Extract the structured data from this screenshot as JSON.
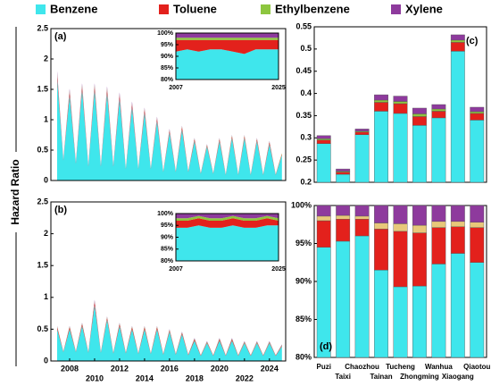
{
  "legend": [
    "Benzene",
    "Toluene",
    "Ethylbenzene",
    "Xylene"
  ],
  "ylabel": "Hazard Ratio",
  "chart_data": [
    {
      "type": "area",
      "label": "(a)",
      "x": [
        2007,
        2007.5,
        2008,
        2008.5,
        2009,
        2009.5,
        2010,
        2010.5,
        2011,
        2011.5,
        2012,
        2012.5,
        2013,
        2013.5,
        2014,
        2014.5,
        2015,
        2015.5,
        2016,
        2016.5,
        2017,
        2017.5,
        2018,
        2018.5,
        2019,
        2019.5,
        2020,
        2020.5,
        2021,
        2021.5,
        2022,
        2022.5,
        2023,
        2023.5,
        2024,
        2024.5,
        2025
      ],
      "xlim": [
        2006.5,
        2025.3
      ],
      "ylim": [
        0,
        2.5
      ],
      "yticks": [
        0,
        0.5,
        1,
        1.5,
        2,
        2.5
      ],
      "series": [
        {
          "name": "Benzene",
          "color": "#3fe6ec",
          "values": [
            1.67,
            0.33,
            1.4,
            0.28,
            1.49,
            0.23,
            1.49,
            0.23,
            1.44,
            0.23,
            1.35,
            0.19,
            1.21,
            0.19,
            1.12,
            0.19,
            0.98,
            0.14,
            0.79,
            0.14,
            0.84,
            0.14,
            0.65,
            0.11,
            0.56,
            0.11,
            0.65,
            0.09,
            0.7,
            0.09,
            0.7,
            0.09,
            0.65,
            0.09,
            0.6,
            0.09,
            0.42
          ]
        },
        {
          "name": "Toluene",
          "color": "#e3211c",
          "values": [
            0.07,
            0.01,
            0.06,
            0.01,
            0.06,
            0.01,
            0.06,
            0.01,
            0.06,
            0.01,
            0.06,
            0.01,
            0.05,
            0.01,
            0.05,
            0.01,
            0.04,
            0.01,
            0.03,
            0.01,
            0.04,
            0.01,
            0.03,
            0.01,
            0.02,
            0.01,
            0.03,
            0.01,
            0.03,
            0.01,
            0.03,
            0.01,
            0.03,
            0.01,
            0.03,
            0.01,
            0.02
          ]
        },
        {
          "name": "Ethylbenzene",
          "color": "#8dc63f",
          "values": [
            0.02,
            0,
            0.02,
            0,
            0.02,
            0,
            0.02,
            0,
            0.02,
            0,
            0.01,
            0,
            0.01,
            0,
            0.01,
            0,
            0.01,
            0,
            0.01,
            0,
            0.01,
            0,
            0.01,
            0,
            0.01,
            0,
            0.01,
            0,
            0.01,
            0,
            0.01,
            0,
            0.01,
            0,
            0.01,
            0,
            0.01
          ]
        },
        {
          "name": "Xylene",
          "color": "#8e3a9d",
          "values": [
            0.04,
            0.01,
            0.03,
            0.01,
            0.03,
            0.01,
            0.03,
            0.01,
            0.03,
            0.01,
            0.03,
            0,
            0.03,
            0,
            0.02,
            0,
            0.02,
            0,
            0.02,
            0,
            0.01,
            0,
            0.01,
            0,
            0.01,
            0,
            0.01,
            0,
            0.01,
            0,
            0.01,
            0,
            0.01,
            0,
            0.01,
            0,
            0
          ]
        }
      ],
      "inset": {
        "x": [
          2007,
          2009,
          2011,
          2013,
          2015,
          2017,
          2019,
          2021,
          2023,
          2025
        ],
        "xlim": [
          2007,
          2025
        ],
        "xticks": [
          2007,
          2025
        ],
        "ylim": [
          80,
          100
        ],
        "yticks": [
          {
            "value": 80,
            "label": "80%"
          },
          {
            "value": 85,
            "label": "85%"
          },
          {
            "value": 90,
            "label": "90%"
          },
          {
            "value": 95,
            "label": "95%"
          },
          {
            "value": 100,
            "label": "100%"
          }
        ],
        "series": [
          {
            "name": "Benzene",
            "color": "#3fe6ec",
            "values": [
              92,
              93,
              92,
              93,
              93,
              92,
              91,
              93,
              93,
              93
            ]
          },
          {
            "name": "Toluene",
            "color": "#e3211c",
            "values": [
              5,
              4,
              5,
              4,
              4,
              5,
              6,
              4,
              4,
              4
            ]
          },
          {
            "name": "Ethylbenzene",
            "color": "#8dc63f",
            "values": [
              1,
              1,
              1,
              1,
              1,
              1,
              1,
              1,
              1,
              1
            ]
          },
          {
            "name": "Xylene",
            "color": "#8e3a9d",
            "values": [
              2,
              2,
              2,
              2,
              2,
              2,
              2,
              2,
              2,
              2
            ]
          }
        ]
      }
    },
    {
      "type": "area",
      "label": "(b)",
      "x": [
        2007,
        2007.5,
        2008,
        2008.5,
        2009,
        2009.5,
        2010,
        2010.5,
        2011,
        2011.5,
        2012,
        2012.5,
        2013,
        2013.5,
        2014,
        2014.5,
        2015,
        2015.5,
        2016,
        2016.5,
        2017,
        2017.5,
        2018,
        2018.5,
        2019,
        2019.5,
        2020,
        2020.5,
        2021,
        2021.5,
        2022,
        2022.5,
        2023,
        2023.5,
        2024,
        2024.5,
        2025
      ],
      "xlim": [
        2006.5,
        2025.3
      ],
      "xticks": [
        2008,
        2010,
        2012,
        2014,
        2016,
        2018,
        2020,
        2022,
        2024
      ],
      "ylim": [
        0,
        2.5
      ],
      "yticks": [
        0,
        0.5,
        1,
        1.5,
        2,
        2.5
      ],
      "series": [
        {
          "name": "Benzene",
          "color": "#3fe6ec",
          "values": [
            0.5,
            0.14,
            0.5,
            0.14,
            0.55,
            0.13,
            0.88,
            0.13,
            0.65,
            0.12,
            0.55,
            0.12,
            0.5,
            0.11,
            0.5,
            0.11,
            0.5,
            0.1,
            0.46,
            0.1,
            0.42,
            0.09,
            0.32,
            0.08,
            0.28,
            0.08,
            0.32,
            0.08,
            0.32,
            0.08,
            0.28,
            0.08,
            0.28,
            0.08,
            0.28,
            0.08,
            0.23
          ]
        },
        {
          "name": "Toluene",
          "color": "#e3211c",
          "values": [
            0.03,
            0.01,
            0.03,
            0.01,
            0.03,
            0.01,
            0.05,
            0.01,
            0.03,
            0.01,
            0.03,
            0.01,
            0.03,
            0.01,
            0.03,
            0.01,
            0.03,
            0.01,
            0.02,
            0.01,
            0.02,
            0.01,
            0.02,
            0.01,
            0.01,
            0.01,
            0.02,
            0.01,
            0.02,
            0.01,
            0.01,
            0.01,
            0.01,
            0.01,
            0.01,
            0.01,
            0.01
          ]
        },
        {
          "name": "Ethylbenzene",
          "color": "#8dc63f",
          "values": [
            0.01,
            0,
            0.01,
            0,
            0.01,
            0,
            0.01,
            0,
            0.01,
            0,
            0.01,
            0,
            0.01,
            0,
            0.01,
            0,
            0.01,
            0,
            0.01,
            0,
            0.01,
            0,
            0.01,
            0,
            0.01,
            0,
            0.01,
            0,
            0.01,
            0,
            0.01,
            0,
            0.01,
            0,
            0.01,
            0,
            0.01
          ]
        },
        {
          "name": "Xylene",
          "color": "#8e3a9d",
          "values": [
            0.01,
            0,
            0.01,
            0,
            0.01,
            0,
            0.02,
            0,
            0.01,
            0,
            0.01,
            0,
            0.01,
            0,
            0.01,
            0,
            0.01,
            0,
            0.01,
            0,
            0.01,
            0,
            0.01,
            0,
            0.01,
            0,
            0.01,
            0,
            0.01,
            0,
            0.01,
            0,
            0.01,
            0,
            0.01,
            0,
            0.01
          ]
        }
      ],
      "inset": {
        "x": [
          2007,
          2009,
          2011,
          2013,
          2015,
          2017,
          2019,
          2021,
          2023,
          2025
        ],
        "xlim": [
          2007,
          2025
        ],
        "xticks": [
          2007,
          2025
        ],
        "ylim": [
          80,
          100
        ],
        "yticks": [
          {
            "value": 80,
            "label": "80%"
          },
          {
            "value": 85,
            "label": "85%"
          },
          {
            "value": 90,
            "label": "90%"
          },
          {
            "value": 95,
            "label": "95%"
          },
          {
            "value": 100,
            "label": "100%"
          }
        ],
        "series": [
          {
            "name": "Benzene",
            "color": "#3fe6ec",
            "values": [
              94,
              94,
              95,
              94,
              94,
              95,
              94,
              94,
              95,
              95
            ]
          },
          {
            "name": "Toluene",
            "color": "#e3211c",
            "values": [
              3,
              3,
              3,
              3,
              3,
              3,
              3,
              3,
              3,
              2
            ]
          },
          {
            "name": "Ethylbenzene",
            "color": "#8dc63f",
            "values": [
              1,
              1,
              1,
              1,
              1,
              1,
              1,
              1,
              1,
              1
            ]
          },
          {
            "name": "Xylene",
            "color": "#8e3a9d",
            "values": [
              2,
              2,
              1,
              2,
              2,
              1,
              2,
              2,
              1,
              2
            ]
          }
        ]
      }
    },
    {
      "type": "bar",
      "label": "(c)",
      "categories": [
        "Puzi",
        "Taixi",
        "Chaozhou",
        "Tainan",
        "Tucheng",
        "Zhongming",
        "Wanhua",
        "Xiaogang",
        "Qiaotou"
      ],
      "ylim": [
        0.2,
        0.55
      ],
      "yticks": [
        0.2,
        0.25,
        0.3,
        0.35,
        0.4,
        0.45,
        0.5,
        0.55
      ],
      "series": [
        {
          "name": "Benzene",
          "color": "#3fe6ec",
          "values": [
            0.287,
            0.218,
            0.307,
            0.36,
            0.355,
            0.328,
            0.345,
            0.495,
            0.34
          ]
        },
        {
          "name": "Toluene",
          "color": "#e3211c",
          "values": [
            0.008,
            0.005,
            0.006,
            0.02,
            0.022,
            0.02,
            0.015,
            0.02,
            0.015
          ]
        },
        {
          "name": "Ethylbenzene",
          "color": "#8dc63f",
          "values": [
            0.003,
            0.002,
            0.002,
            0.005,
            0.005,
            0.006,
            0.005,
            0.005,
            0.004
          ]
        },
        {
          "name": "Xylene",
          "color": "#8e3a9d",
          "values": [
            0.007,
            0.005,
            0.005,
            0.012,
            0.012,
            0.013,
            0.01,
            0.012,
            0.01
          ]
        }
      ]
    },
    {
      "type": "bar",
      "label": "(d)",
      "categories": [
        "Puzi",
        "Taixi",
        "Chaozhou",
        "Tainan",
        "Tucheng",
        "Zhongming",
        "Wanhua",
        "Xiaogang",
        "Qiaotou"
      ],
      "ylim": [
        80,
        100
      ],
      "yticks": [
        {
          "value": 80,
          "label": "80%"
        },
        {
          "value": 85,
          "label": "85%"
        },
        {
          "value": 90,
          "label": "90%"
        },
        {
          "value": 95,
          "label": "95%"
        },
        {
          "value": 100,
          "label": "100%"
        }
      ],
      "series": [
        {
          "name": "Benzene",
          "color": "#3fe6ec",
          "values": [
            94.5,
            95.3,
            96,
            91.5,
            89.3,
            89.4,
            92.3,
            93.7,
            92.5
          ]
        },
        {
          "name": "Toluene",
          "color": "#e3211c",
          "values": [
            3.5,
            2.9,
            2.2,
            5.4,
            7.3,
            7,
            4.8,
            3.5,
            4.6
          ]
        },
        {
          "name": "Ethylbenzene",
          "color": "#e8c87a",
          "values": [
            0.6,
            0.5,
            0.4,
            0.8,
            1,
            1,
            0.8,
            0.7,
            0.7
          ]
        },
        {
          "name": "Xylene",
          "color": "#8e3a9d",
          "values": [
            1.4,
            1.3,
            1.4,
            2.3,
            2.4,
            2.6,
            2.1,
            2.1,
            2.2
          ]
        }
      ]
    }
  ]
}
